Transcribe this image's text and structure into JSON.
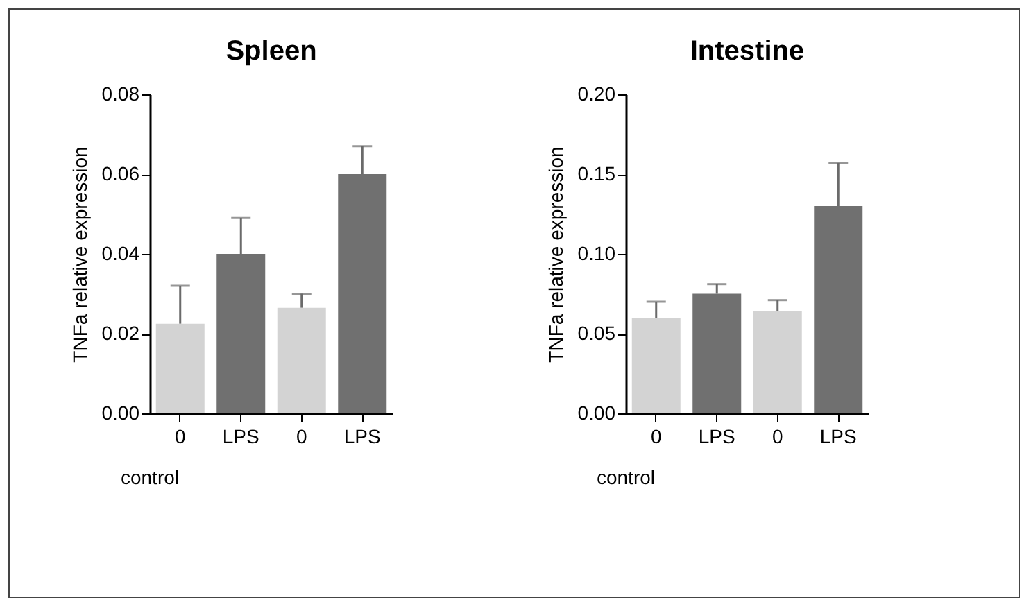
{
  "chart_data": [
    {
      "type": "bar",
      "title": "Spleen",
      "ylabel": "TNFa relative expression",
      "categories": [
        "0",
        "LPS",
        "0",
        "LPS"
      ],
      "values": [
        0.0225,
        0.04,
        0.0265,
        0.06
      ],
      "colors": [
        "#d3d3d3",
        "#707070",
        "#d3d3d3",
        "#707070"
      ],
      "errors": [
        [
          0.0225,
          0.032
        ],
        [
          0.04,
          0.049
        ],
        [
          0.0265,
          0.03
        ],
        [
          0.06,
          0.067
        ]
      ],
      "ylim": [
        0,
        0.08
      ],
      "yticks": [
        {
          "value": 0,
          "label": "0.00"
        },
        0.02,
        0.04,
        0.06,
        {
          "value": 0.08,
          "label": "0.08"
        }
      ],
      "grid": false,
      "annotations": [
        "control"
      ]
    },
    {
      "type": "bar",
      "title": "Intestine",
      "ylabel": "TNFa relative expression",
      "categories": [
        "0",
        "LPS",
        "0",
        "LPS"
      ],
      "values": [
        0.06,
        0.075,
        0.064,
        0.13
      ],
      "colors": [
        "#d3d3d3",
        "#707070",
        "#d3d3d3",
        "#707070"
      ],
      "errors": [
        [
          0.06,
          0.07
        ],
        [
          0.075,
          0.081
        ],
        [
          0.064,
          0.071
        ],
        [
          0.13,
          0.157
        ]
      ],
      "ylim": [
        0,
        0.2
      ],
      "yticks": [
        {
          "value": 0,
          "label": "0.00"
        },
        0.05,
        {
          "value": 0.1,
          "label": "0.10"
        },
        0.15,
        {
          "value": 0.2,
          "label": "0.20"
        }
      ],
      "grid": false,
      "annotations": [
        "control"
      ]
    }
  ]
}
